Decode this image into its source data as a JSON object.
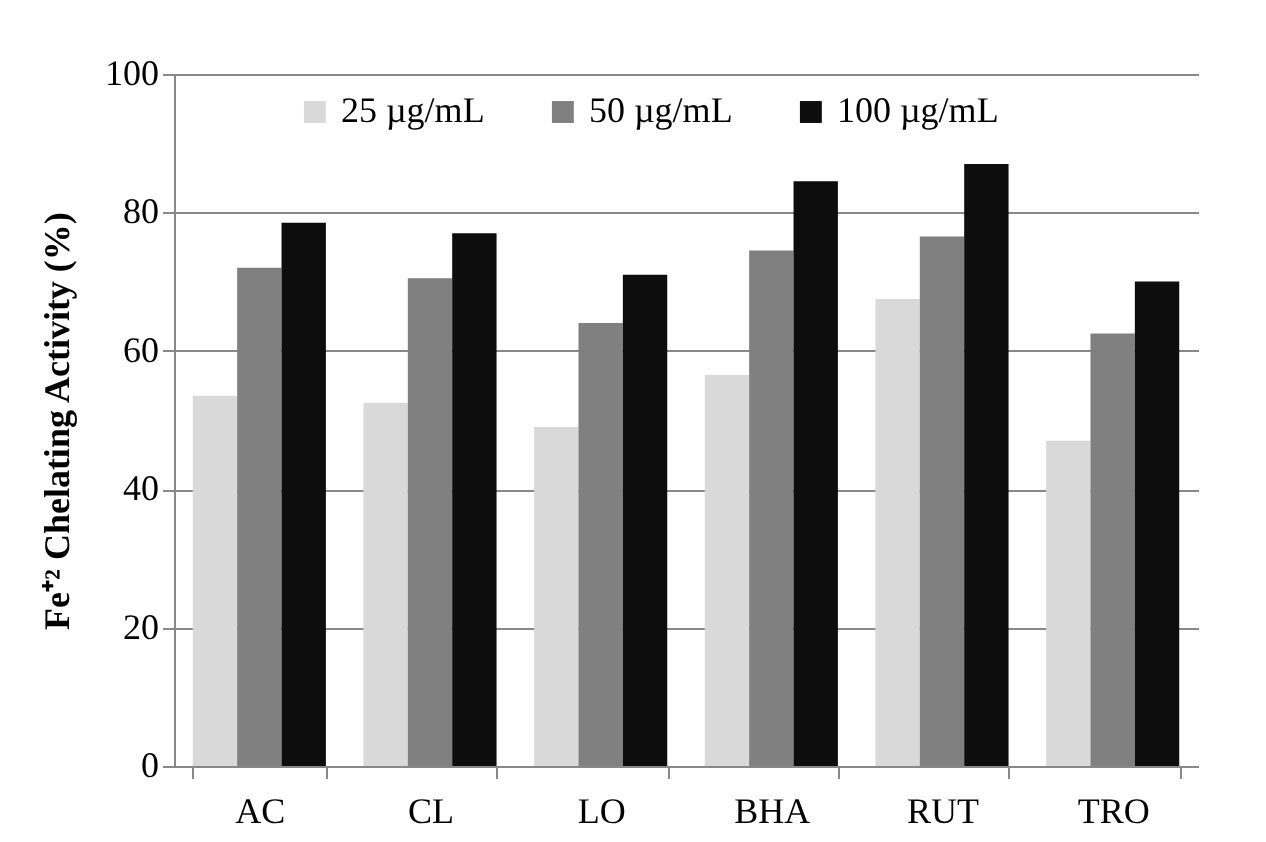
{
  "chart_data": {
    "type": "bar",
    "ylabel": "Fe⁺² Chelating Activity (%)",
    "categories": [
      "AC",
      "CL",
      "LO",
      "BHA",
      "RUT",
      "TRO"
    ],
    "series": [
      {
        "name": "25 µg/mL",
        "color": "#d9d9d9",
        "values": [
          53.5,
          52.5,
          49,
          56.5,
          67.5,
          47
        ]
      },
      {
        "name": "50 µg/mL",
        "color": "#808080",
        "values": [
          72,
          70.5,
          64,
          74.5,
          76.5,
          62.5
        ]
      },
      {
        "name": "100 µg/mL",
        "color": "#0d0d0d",
        "values": [
          78.5,
          77,
          71,
          84.5,
          87,
          70
        ]
      }
    ],
    "ylim": [
      0,
      100
    ],
    "yticks": [
      0,
      20,
      40,
      60,
      80,
      100
    ],
    "grid": "y",
    "legend": "top"
  }
}
